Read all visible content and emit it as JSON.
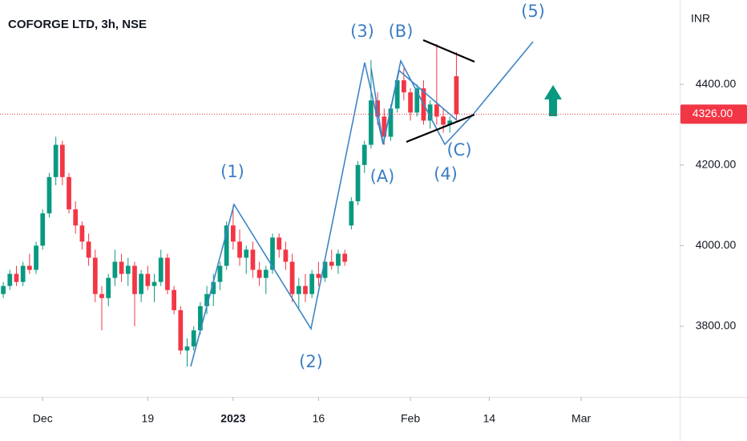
{
  "chart_data": {
    "type": "candlestick",
    "title": "COFORGE LTD, 3h, NSE",
    "currency": "INR",
    "up_color": "#089981",
    "down_color": "#f23645",
    "categories": [
      null,
      null,
      null,
      null,
      null,
      null,
      null,
      null,
      null,
      null,
      null,
      null,
      null,
      null,
      null,
      null,
      null,
      null,
      null,
      null,
      null,
      null,
      null,
      null,
      null,
      null,
      null,
      null,
      null,
      null,
      null,
      null,
      null,
      null,
      null,
      null,
      null,
      null,
      null,
      null,
      null,
      null,
      null,
      null,
      null,
      null,
      null,
      null,
      null,
      null,
      null,
      null,
      null,
      null,
      null,
      null,
      null,
      null,
      null,
      null,
      null,
      null,
      null,
      null,
      null,
      null,
      null,
      null,
      null,
      null
    ],
    "open": [
      3880,
      3900,
      3930,
      3910,
      3950,
      3940,
      4000,
      4080,
      4170,
      4250,
      4170,
      4090,
      4050,
      4010,
      3970,
      3880,
      3870,
      3920,
      3960,
      3930,
      3950,
      3880,
      3930,
      3900,
      3910,
      3970,
      3890,
      3840,
      3740,
      3750,
      3790,
      3850,
      3880,
      3910,
      3950,
      4050,
      4010,
      3970,
      3990,
      3940,
      3920,
      3940,
      4020,
      3990,
      3960,
      3880,
      3900,
      3880,
      3930,
      3920,
      3960,
      3950,
      3980,
      4050,
      4110,
      4200,
      4250,
      4360,
      4320,
      4270,
      4340,
      4410,
      4380,
      4330,
      4390,
      4310,
      4350,
      4320,
      4300,
      4420
    ],
    "high": [
      3910,
      3940,
      3950,
      3960,
      3980,
      4010,
      4090,
      4180,
      4270,
      4260,
      4180,
      4110,
      4060,
      4030,
      3990,
      3900,
      3930,
      3990,
      3980,
      3970,
      3960,
      3940,
      3950,
      3930,
      3990,
      3980,
      3900,
      3850,
      3770,
      3800,
      3860,
      3900,
      3930,
      3960,
      4060,
      4100,
      4040,
      4000,
      4010,
      3960,
      3950,
      4030,
      4030,
      4010,
      3980,
      3920,
      3930,
      3940,
      3960,
      3970,
      3990,
      3990,
      3990,
      4120,
      4210,
      4260,
      4460,
      4380,
      4340,
      4350,
      4420,
      4440,
      4390,
      4400,
      4410,
      4360,
      4500,
      4340,
      4320,
      4480
    ],
    "low": [
      3870,
      3890,
      3900,
      3900,
      3930,
      3930,
      3990,
      4070,
      4150,
      4150,
      4080,
      4030,
      3990,
      3950,
      3860,
      3790,
      3850,
      3900,
      3910,
      3900,
      3800,
      3860,
      3890,
      3860,
      3900,
      3880,
      3830,
      3730,
      3700,
      3740,
      3780,
      3830,
      3850,
      3890,
      3940,
      3990,
      3950,
      3930,
      3920,
      3900,
      3880,
      3930,
      3970,
      3940,
      3860,
      3840,
      3860,
      3870,
      3900,
      3910,
      3940,
      3930,
      3950,
      4040,
      4100,
      4180,
      4240,
      4300,
      4250,
      4260,
      4330,
      4360,
      4310,
      4320,
      4300,
      4290,
      4300,
      4280,
      4280,
      4310
    ],
    "close": [
      3900,
      3930,
      3910,
      3950,
      3940,
      4000,
      4080,
      4170,
      4250,
      4170,
      4090,
      4050,
      4010,
      3970,
      3880,
      3870,
      3920,
      3960,
      3930,
      3950,
      3880,
      3930,
      3900,
      3910,
      3970,
      3890,
      3840,
      3740,
      3750,
      3790,
      3850,
      3880,
      3910,
      3950,
      4050,
      4010,
      3970,
      3990,
      3940,
      3920,
      3940,
      4020,
      3990,
      3960,
      3880,
      3900,
      3880,
      3930,
      3920,
      3960,
      3950,
      3980,
      3960,
      4110,
      4200,
      4250,
      4360,
      4320,
      4270,
      4340,
      4410,
      4380,
      4330,
      4390,
      4310,
      4350,
      4320,
      4300,
      4310,
      4326
    ],
    "xlim": [
      -0.5,
      103
    ],
    "xticks": [
      {
        "value": 6,
        "label": "Dec"
      },
      {
        "value": 22,
        "label": "19"
      },
      {
        "value": 35,
        "label": "2023"
      },
      {
        "value": 48,
        "label": "16"
      },
      {
        "value": 62,
        "label": "Feb"
      },
      {
        "value": 74,
        "label": "14"
      },
      {
        "value": 88,
        "label": "Mar"
      }
    ],
    "ylim": [
      3625,
      4609
    ],
    "yticks": [
      {
        "value": 3800,
        "label": "3800.00"
      },
      {
        "value": 4000,
        "label": "4000.00"
      },
      {
        "value": 4200,
        "label": "4200.00"
      },
      {
        "value": 4400,
        "label": "4400.00"
      }
    ],
    "last_price": {
      "value": 4326,
      "label": "4326.00"
    },
    "annotations": [
      "(1)",
      "(2)",
      "(3)",
      "(4)",
      "(5)",
      "(A)",
      "(B)",
      "(C)"
    ]
  }
}
